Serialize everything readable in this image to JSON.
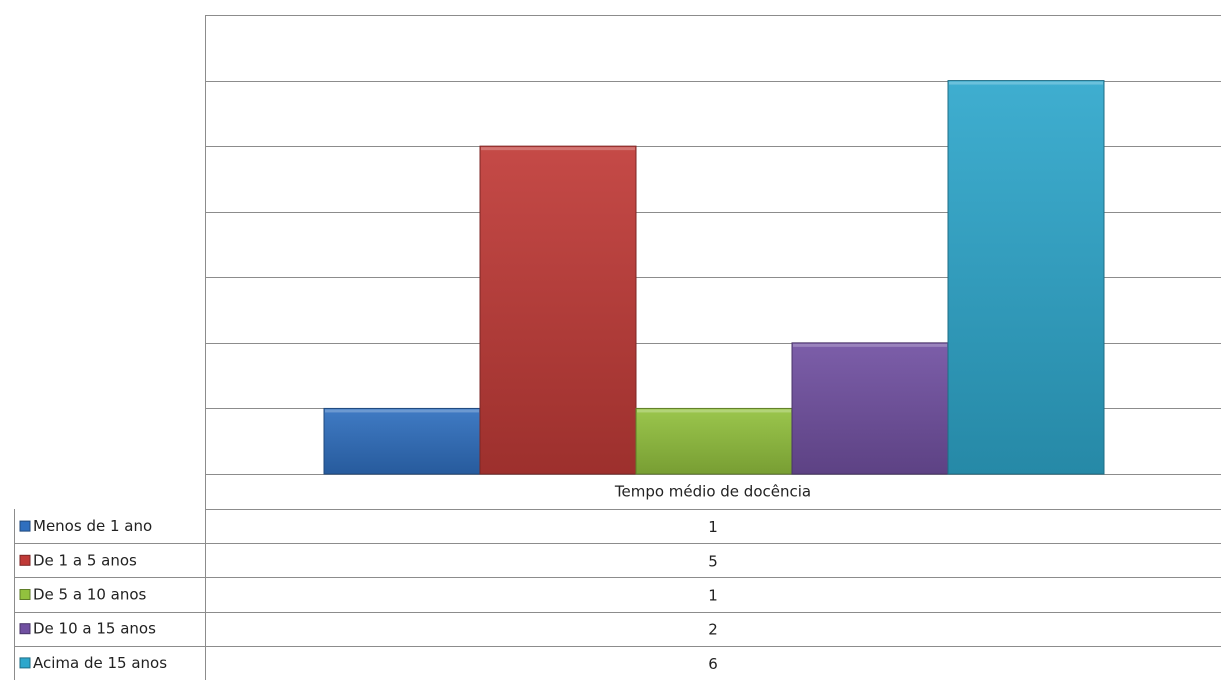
{
  "chart_data": {
    "type": "bar",
    "categories": [
      "Tempo médio de docência"
    ],
    "series": [
      {
        "name": "Menos de 1 ano",
        "values": [
          1
        ],
        "color": "#2f6fbf"
      },
      {
        "name": "De 1 a 5 anos",
        "values": [
          5
        ],
        "color": "#c03a37"
      },
      {
        "name": "De 5 a 10 anos",
        "values": [
          1
        ],
        "color": "#92c13e"
      },
      {
        "name": "De 10 a 15 anos",
        "values": [
          2
        ],
        "color": "#7150a1"
      },
      {
        "name": "Acima de 15 anos",
        "values": [
          6
        ],
        "color": "#2ea7cc"
      }
    ],
    "ylim": [
      0,
      7
    ],
    "grid": true,
    "legend": "data-table"
  }
}
